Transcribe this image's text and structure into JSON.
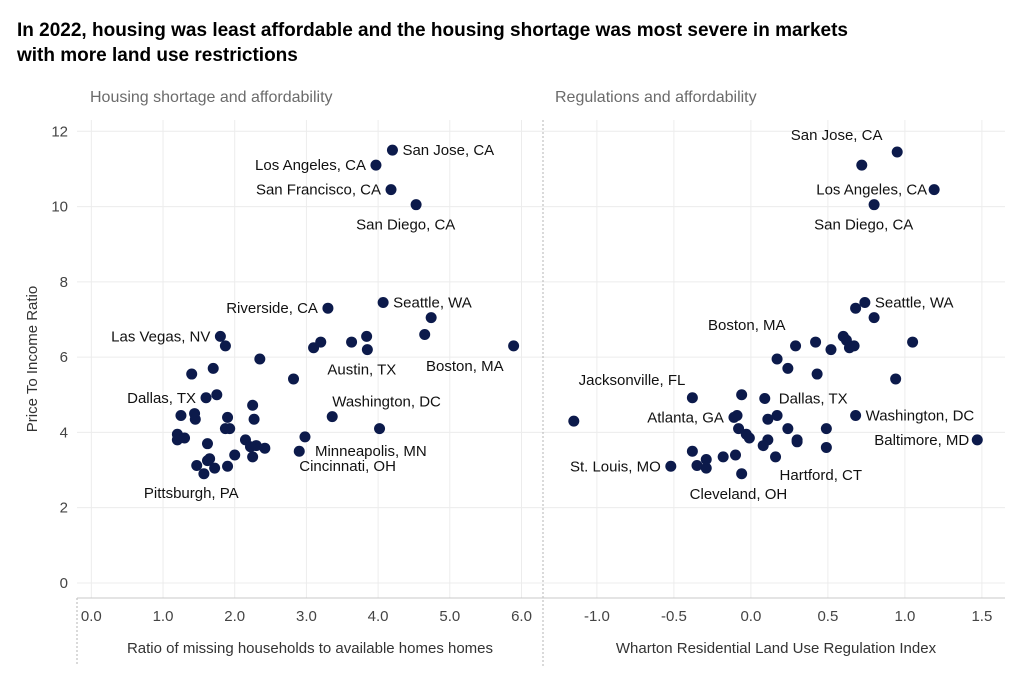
{
  "title_lines": [
    "In 2022, housing was least affordable and the housing shortage was most severe in markets",
    "with more land use restrictions"
  ],
  "colors": {
    "dot": "#0c1a4b",
    "grid": "#ececec",
    "title": "#000000",
    "panel_title": "#6b6b6b"
  },
  "chart_data": [
    {
      "type": "scatter",
      "title": "Housing shortage and affordability",
      "xlabel": "Ratio of missing households to available homes homes",
      "ylabel": "Price To Income Ratio",
      "xlim": [
        -0.2,
        6.3
      ],
      "ylim": [
        -0.4,
        12.3
      ],
      "xticks": [
        "0.0",
        "1.0",
        "2.0",
        "3.0",
        "4.0",
        "5.0",
        "6.0"
      ],
      "yticks": [
        "0",
        "2",
        "4",
        "6",
        "8",
        "10",
        "12"
      ],
      "grid": true,
      "points": [
        {
          "x": 4.2,
          "y": 11.5,
          "label": "San Jose, CA"
        },
        {
          "x": 3.97,
          "y": 11.1,
          "label": "Los Angeles, CA"
        },
        {
          "x": 4.18,
          "y": 10.45,
          "label": "San Francisco, CA"
        },
        {
          "x": 4.53,
          "y": 10.05,
          "label": "San Diego, CA"
        },
        {
          "x": 3.3,
          "y": 7.3,
          "label": "Riverside, CA"
        },
        {
          "x": 4.07,
          "y": 7.45,
          "label": "Seattle, WA"
        },
        {
          "x": 4.74,
          "y": 7.05
        },
        {
          "x": 4.65,
          "y": 6.6
        },
        {
          "x": 5.89,
          "y": 6.3,
          "label": "Boston, MA"
        },
        {
          "x": 3.84,
          "y": 6.55
        },
        {
          "x": 3.63,
          "y": 6.4
        },
        {
          "x": 3.85,
          "y": 6.2,
          "label": "Austin, TX"
        },
        {
          "x": 3.2,
          "y": 6.4
        },
        {
          "x": 3.1,
          "y": 6.25
        },
        {
          "x": 1.8,
          "y": 6.55,
          "label": "Las Vegas, NV"
        },
        {
          "x": 1.87,
          "y": 6.3
        },
        {
          "x": 2.35,
          "y": 5.95
        },
        {
          "x": 1.7,
          "y": 5.7
        },
        {
          "x": 1.4,
          "y": 5.55
        },
        {
          "x": 2.82,
          "y": 5.42
        },
        {
          "x": 1.75,
          "y": 5.0
        },
        {
          "x": 1.6,
          "y": 4.92,
          "label": "Dallas, TX"
        },
        {
          "x": 2.25,
          "y": 4.72
        },
        {
          "x": 1.44,
          "y": 4.5
        },
        {
          "x": 1.45,
          "y": 4.35
        },
        {
          "x": 1.25,
          "y": 4.45
        },
        {
          "x": 1.9,
          "y": 4.4
        },
        {
          "x": 2.27,
          "y": 4.35
        },
        {
          "x": 3.36,
          "y": 4.42,
          "label": "Washington, DC"
        },
        {
          "x": 1.87,
          "y": 4.1
        },
        {
          "x": 1.93,
          "y": 4.1
        },
        {
          "x": 4.02,
          "y": 4.1
        },
        {
          "x": 1.2,
          "y": 3.95
        },
        {
          "x": 1.2,
          "y": 3.8
        },
        {
          "x": 1.3,
          "y": 3.85
        },
        {
          "x": 2.98,
          "y": 3.88,
          "label": "Minneapolis, MN"
        },
        {
          "x": 1.62,
          "y": 3.7
        },
        {
          "x": 2.15,
          "y": 3.8
        },
        {
          "x": 2.3,
          "y": 3.65
        },
        {
          "x": 2.22,
          "y": 3.62
        },
        {
          "x": 2.42,
          "y": 3.58
        },
        {
          "x": 2.9,
          "y": 3.5,
          "label": "Cincinnati, OH"
        },
        {
          "x": 2.0,
          "y": 3.4
        },
        {
          "x": 2.25,
          "y": 3.35
        },
        {
          "x": 1.65,
          "y": 3.3
        },
        {
          "x": 1.62,
          "y": 3.25
        },
        {
          "x": 1.47,
          "y": 3.12
        },
        {
          "x": 1.9,
          "y": 3.1
        },
        {
          "x": 1.72,
          "y": 3.05
        },
        {
          "x": 1.57,
          "y": 2.9,
          "label": "Pittsburgh, PA"
        }
      ]
    },
    {
      "type": "scatter",
      "title": "Regulations and affordability",
      "xlabel": "Wharton Residential Land Use Regulation Index",
      "xlim": [
        -1.35,
        1.65
      ],
      "ylim": [
        -0.4,
        12.3
      ],
      "xticks": [
        "-1.0",
        "-0.5",
        "0.0",
        "0.5",
        "1.0",
        "1.5"
      ],
      "grid": true,
      "points": [
        {
          "x": 0.72,
          "y": 11.1,
          "label": "San Jose, CA"
        },
        {
          "x": 0.95,
          "y": 11.45
        },
        {
          "x": 1.19,
          "y": 10.45,
          "label": "Los Angeles, CA"
        },
        {
          "x": 0.8,
          "y": 10.05,
          "label": "San Diego, CA"
        },
        {
          "x": 0.68,
          "y": 7.3
        },
        {
          "x": 0.74,
          "y": 7.45,
          "label": "Seattle, WA"
        },
        {
          "x": 0.8,
          "y": 7.05
        },
        {
          "x": 0.6,
          "y": 6.55
        },
        {
          "x": 0.62,
          "y": 6.45
        },
        {
          "x": 0.64,
          "y": 6.25
        },
        {
          "x": 0.67,
          "y": 6.3
        },
        {
          "x": 0.52,
          "y": 6.2
        },
        {
          "x": 0.42,
          "y": 6.4
        },
        {
          "x": 0.29,
          "y": 6.3,
          "label": "Boston, MA"
        },
        {
          "x": 1.05,
          "y": 6.4
        },
        {
          "x": 0.17,
          "y": 5.95
        },
        {
          "x": 0.24,
          "y": 5.7
        },
        {
          "x": 0.43,
          "y": 5.55
        },
        {
          "x": 0.94,
          "y": 5.42
        },
        {
          "x": -0.38,
          "y": 4.92,
          "label": "Jacksonville, FL"
        },
        {
          "x": -0.06,
          "y": 5.0
        },
        {
          "x": 0.09,
          "y": 4.9,
          "label": "Dallas, TX"
        },
        {
          "x": -0.11,
          "y": 4.4,
          "label": "Atlanta, GA"
        },
        {
          "x": -0.09,
          "y": 4.45
        },
        {
          "x": 0.11,
          "y": 4.35
        },
        {
          "x": 0.17,
          "y": 4.45
        },
        {
          "x": 0.68,
          "y": 4.45,
          "label": "Washington, DC"
        },
        {
          "x": -1.15,
          "y": 4.3
        },
        {
          "x": -0.08,
          "y": 4.1
        },
        {
          "x": 0.24,
          "y": 4.1
        },
        {
          "x": 0.49,
          "y": 4.1
        },
        {
          "x": -0.03,
          "y": 3.95
        },
        {
          "x": -0.01,
          "y": 3.85
        },
        {
          "x": 0.11,
          "y": 3.8
        },
        {
          "x": 0.3,
          "y": 3.75
        },
        {
          "x": 0.3,
          "y": 3.8
        },
        {
          "x": 0.08,
          "y": 3.65
        },
        {
          "x": 1.47,
          "y": 3.8,
          "label": "Baltimore, MD"
        },
        {
          "x": 0.49,
          "y": 3.6
        },
        {
          "x": -0.38,
          "y": 3.5
        },
        {
          "x": -0.1,
          "y": 3.4
        },
        {
          "x": 0.16,
          "y": 3.35,
          "label": "Hartford, CT"
        },
        {
          "x": -0.18,
          "y": 3.35
        },
        {
          "x": -0.29,
          "y": 3.28
        },
        {
          "x": -0.29,
          "y": 3.05
        },
        {
          "x": -0.35,
          "y": 3.12
        },
        {
          "x": -0.52,
          "y": 3.1,
          "label": "St. Louis, MO"
        },
        {
          "x": -0.06,
          "y": 2.9,
          "label": "Cleveland, OH"
        }
      ]
    }
  ]
}
